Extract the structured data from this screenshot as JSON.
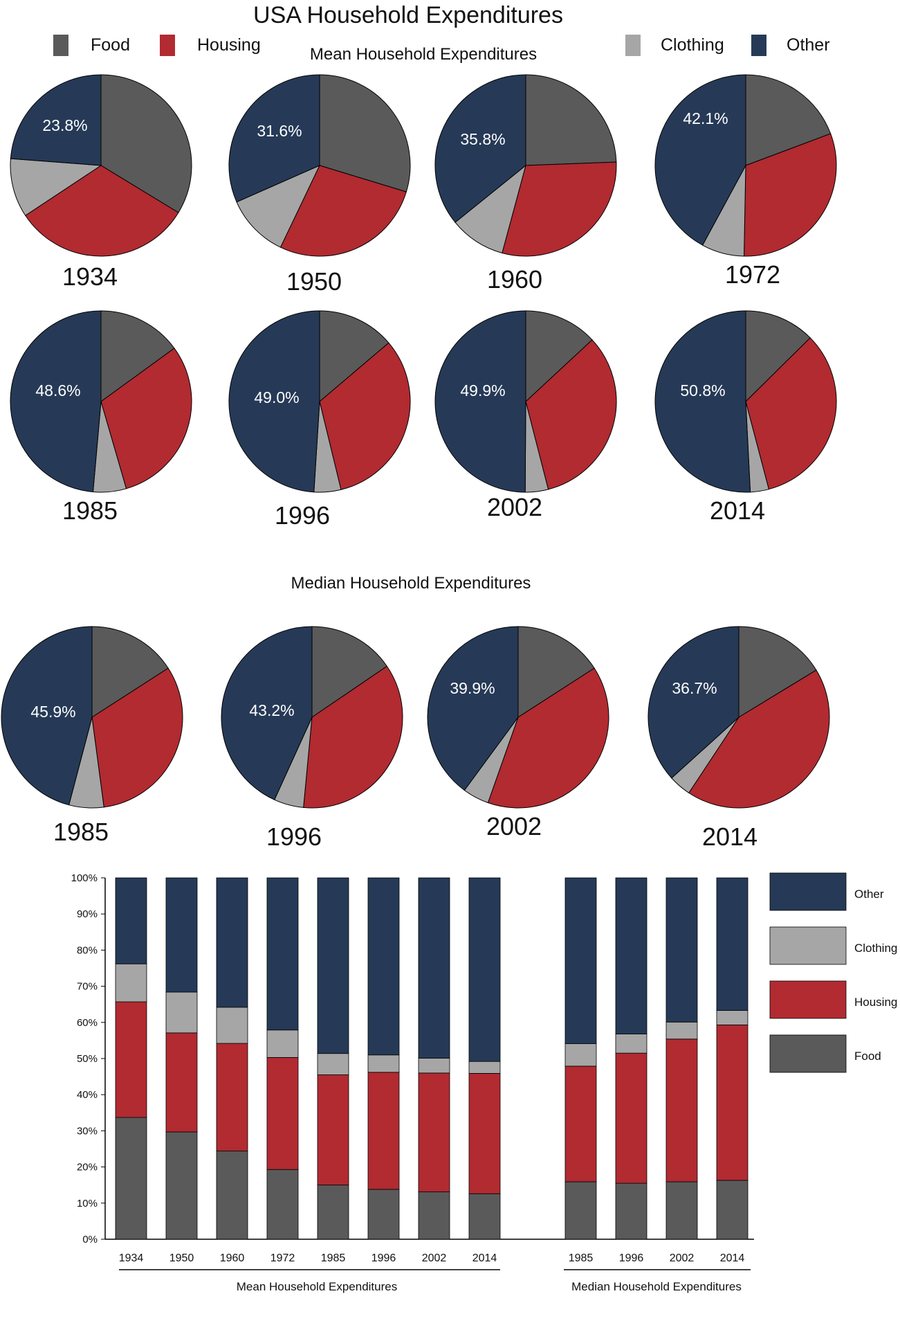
{
  "title": "USA Household Expenditures",
  "legend": {
    "items": [
      {
        "key": "food",
        "label": "Food"
      },
      {
        "key": "housing",
        "label": "Housing"
      },
      {
        "key": "clothing",
        "label": "Clothing"
      },
      {
        "key": "other",
        "label": "Other"
      }
    ]
  },
  "colors": {
    "food": "#5a5a5a",
    "housing": "#b12b31",
    "clothing": "#a6a6a6",
    "other": "#263a57"
  },
  "chart_data": [
    {
      "type": "pie",
      "title": "Mean Household Expenditures",
      "series_keys": [
        "food",
        "housing",
        "clothing",
        "other"
      ],
      "pies": [
        {
          "year": "1934",
          "values": {
            "food": 33.7,
            "housing": 32.0,
            "clothing": 10.5,
            "other": 23.8
          },
          "label": "23.8%"
        },
        {
          "year": "1950",
          "values": {
            "food": 29.7,
            "housing": 27.4,
            "clothing": 11.3,
            "other": 31.6
          },
          "label": "31.6%"
        },
        {
          "year": "1960",
          "values": {
            "food": 24.4,
            "housing": 29.8,
            "clothing": 10.0,
            "other": 35.8
          },
          "label": "35.8%"
        },
        {
          "year": "1972",
          "values": {
            "food": 19.3,
            "housing": 31.0,
            "clothing": 7.6,
            "other": 42.1
          },
          "label": "42.1%"
        },
        {
          "year": "1985",
          "values": {
            "food": 15.0,
            "housing": 30.5,
            "clothing": 5.9,
            "other": 48.6
          },
          "label": "48.6%"
        },
        {
          "year": "1996",
          "values": {
            "food": 13.8,
            "housing": 32.4,
            "clothing": 4.8,
            "other": 49.0
          },
          "label": "49.0%"
        },
        {
          "year": "2002",
          "values": {
            "food": 13.1,
            "housing": 32.9,
            "clothing": 4.1,
            "other": 49.9
          },
          "label": "49.9%"
        },
        {
          "year": "2014",
          "values": {
            "food": 12.6,
            "housing": 33.3,
            "clothing": 3.3,
            "other": 50.8
          },
          "label": "50.8%"
        }
      ]
    },
    {
      "type": "pie",
      "title": "Median Household Expenditures",
      "series_keys": [
        "food",
        "housing",
        "clothing",
        "other"
      ],
      "pies": [
        {
          "year": "1985",
          "values": {
            "food": 15.9,
            "housing": 32.0,
            "clothing": 6.2,
            "other": 45.9
          },
          "label": "45.9%"
        },
        {
          "year": "1996",
          "values": {
            "food": 15.5,
            "housing": 36.0,
            "clothing": 5.3,
            "other": 43.2
          },
          "label": "43.2%"
        },
        {
          "year": "2002",
          "values": {
            "food": 15.9,
            "housing": 39.5,
            "clothing": 4.7,
            "other": 39.9
          },
          "label": "39.9%"
        },
        {
          "year": "2014",
          "values": {
            "food": 16.3,
            "housing": 43.0,
            "clothing": 4.0,
            "other": 36.7
          },
          "label": "36.7%"
        }
      ]
    },
    {
      "type": "bar",
      "stacked": true,
      "ylim": [
        0,
        100
      ],
      "yticks": [
        "0%",
        "10%",
        "20%",
        "30%",
        "40%",
        "50%",
        "60%",
        "70%",
        "80%",
        "90%",
        "100%"
      ],
      "series": [
        {
          "name": "Food",
          "key": "food"
        },
        {
          "name": "Housing",
          "key": "housing"
        },
        {
          "name": "Clothing",
          "key": "clothing"
        },
        {
          "name": "Other",
          "key": "other"
        }
      ],
      "legend": [
        "Other",
        "Clothing",
        "Housing",
        "Food"
      ],
      "groups": [
        {
          "label": "Mean Household Expenditures",
          "categories": [
            "1934",
            "1950",
            "1960",
            "1972",
            "1985",
            "1996",
            "2002",
            "2014"
          ],
          "values": {
            "food": [
              33.7,
              29.7,
              24.4,
              19.3,
              15.0,
              13.8,
              13.1,
              12.6
            ],
            "housing": [
              32.0,
              27.4,
              29.8,
              31.0,
              30.5,
              32.4,
              32.9,
              33.3
            ],
            "clothing": [
              10.5,
              11.3,
              10.0,
              7.6,
              5.9,
              4.8,
              4.1,
              3.3
            ],
            "other": [
              23.8,
              31.6,
              35.8,
              42.1,
              48.6,
              49.0,
              49.9,
              50.8
            ]
          }
        },
        {
          "label": "Median Household Expenditures",
          "categories": [
            "1985",
            "1996",
            "2002",
            "2014"
          ],
          "values": {
            "food": [
              15.9,
              15.5,
              15.9,
              16.3
            ],
            "housing": [
              32.0,
              36.0,
              39.5,
              43.0
            ],
            "clothing": [
              6.2,
              5.3,
              4.7,
              4.0
            ],
            "other": [
              45.9,
              43.2,
              39.9,
              36.7
            ]
          }
        }
      ]
    }
  ]
}
